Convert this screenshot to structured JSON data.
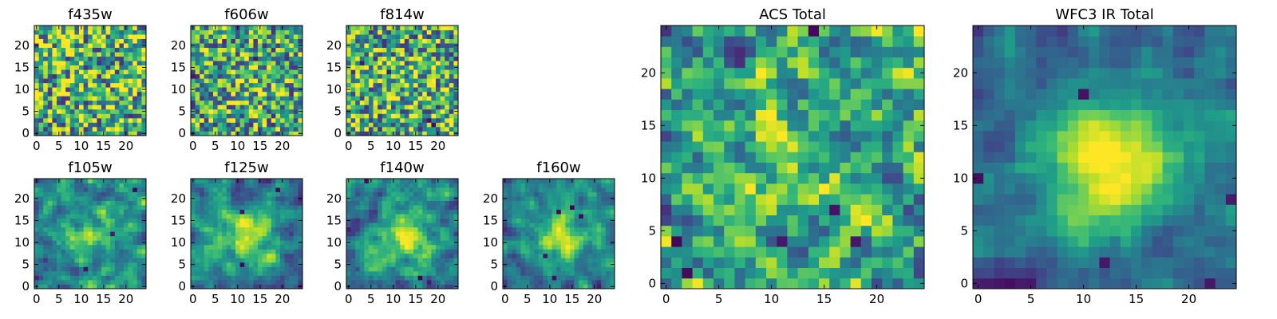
{
  "chart_data": [
    {
      "type": "heatmap",
      "title": "f435w",
      "size": 25,
      "colormap": "viridis",
      "seed": 11,
      "center_strength": 0.0,
      "blur": 0,
      "dark_spots": 0,
      "xticks": [
        "0",
        "5",
        "10",
        "15",
        "20"
      ],
      "yticks": [
        "0",
        "5",
        "10",
        "15",
        "20"
      ],
      "xlim": [
        0,
        25
      ],
      "ylim": [
        0,
        25
      ]
    },
    {
      "type": "heatmap",
      "title": "f606w",
      "size": 25,
      "colormap": "viridis",
      "seed": 23,
      "center_strength": 0.15,
      "blur": 0,
      "dark_spots": 2,
      "xticks": [
        "0",
        "5",
        "10",
        "15",
        "20"
      ],
      "yticks": [
        "0",
        "5",
        "10",
        "15",
        "20"
      ],
      "xlim": [
        0,
        25
      ],
      "ylim": [
        0,
        25
      ]
    },
    {
      "type": "heatmap",
      "title": "f814w",
      "size": 25,
      "colormap": "viridis",
      "seed": 37,
      "center_strength": 0.1,
      "blur": 0,
      "dark_spots": 4,
      "xticks": [
        "0",
        "5",
        "10",
        "15",
        "20"
      ],
      "yticks": [
        "0",
        "5",
        "10",
        "15",
        "20"
      ],
      "xlim": [
        0,
        25
      ],
      "ylim": [
        0,
        25
      ]
    },
    {
      "type": "heatmap",
      "title": "f105w",
      "size": 25,
      "colormap": "viridis",
      "seed": 41,
      "center_strength": 0.35,
      "blur": 0.5,
      "dark_spots": 3,
      "xticks": [
        "0",
        "5",
        "10",
        "15",
        "20"
      ],
      "yticks": [
        "0",
        "5",
        "10",
        "15",
        "20"
      ],
      "xlim": [
        0,
        25
      ],
      "ylim": [
        0,
        25
      ]
    },
    {
      "type": "heatmap",
      "title": "f125w",
      "size": 25,
      "colormap": "viridis",
      "seed": 53,
      "center_strength": 0.5,
      "blur": 0.6,
      "dark_spots": 3,
      "xticks": [
        "0",
        "5",
        "10",
        "15",
        "20"
      ],
      "yticks": [
        "0",
        "5",
        "10",
        "15",
        "20"
      ],
      "xlim": [
        0,
        25
      ],
      "ylim": [
        0,
        25
      ]
    },
    {
      "type": "heatmap",
      "title": "f140w",
      "size": 25,
      "colormap": "viridis",
      "seed": 67,
      "center_strength": 0.5,
      "blur": 0.6,
      "dark_spots": 2,
      "xticks": [
        "0",
        "5",
        "10",
        "15",
        "20"
      ],
      "yticks": [
        "0",
        "5",
        "10",
        "15",
        "20"
      ],
      "xlim": [
        0,
        25
      ],
      "ylim": [
        0,
        25
      ]
    },
    {
      "type": "heatmap",
      "title": "f160w",
      "size": 25,
      "colormap": "viridis",
      "seed": 79,
      "center_strength": 0.55,
      "blur": 0.6,
      "dark_spots": 5,
      "xticks": [
        "0",
        "5",
        "10",
        "15",
        "20"
      ],
      "yticks": [
        "0",
        "5",
        "10",
        "15",
        "20"
      ],
      "xlim": [
        0,
        25
      ],
      "ylim": [
        0,
        25
      ]
    },
    {
      "type": "heatmap",
      "title": "ACS Total",
      "size": 25,
      "colormap": "viridis",
      "seed": 89,
      "center_strength": 0.2,
      "blur": 0.2,
      "dark_spots": 6,
      "xticks": [
        "0",
        "5",
        "10",
        "15",
        "20"
      ],
      "yticks": [
        "0",
        "5",
        "10",
        "15",
        "20"
      ],
      "xlim": [
        0,
        25
      ],
      "ylim": [
        0,
        25
      ]
    },
    {
      "type": "heatmap",
      "title": "WFC3 IR Total",
      "size": 25,
      "colormap": "viridis",
      "seed": 97,
      "center_strength": 0.75,
      "blur": 1.0,
      "dark_spots": 5,
      "xticks": [
        "0",
        "5",
        "10",
        "15",
        "20"
      ],
      "yticks": [
        "0",
        "5",
        "10",
        "15",
        "20"
      ],
      "xlim": [
        0,
        25
      ],
      "ylim": [
        0,
        25
      ]
    }
  ]
}
